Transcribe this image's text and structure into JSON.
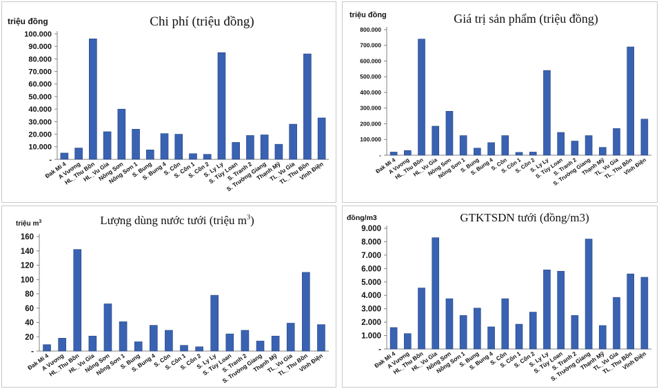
{
  "chart_data": [
    {
      "type": "bar",
      "title": "Chi phí (triệu đồng)",
      "ylabel": "triệu đồng",
      "ylim": [
        0,
        100000
      ],
      "y_ticks": [
        "-",
        "10.000",
        "20.000",
        "30.000",
        "40.000",
        "50.000",
        "60.000",
        "70.000",
        "80.000",
        "90.000",
        "100.000"
      ],
      "categories": [
        "Đak Mi 4",
        "A Vương",
        "HL_Thu Bồn",
        "HL_Vu Gia",
        "Nông Sơn",
        "Nông Sơn 1",
        "S. Bung",
        "S. Bung 4",
        "S. Côn",
        "S. Côn 1",
        "S. Côn 2",
        "S. Ly Ly",
        "S. Tùy Loan",
        "S. Tranh 2",
        "S. Trường Giang",
        "Thạnh Mỹ",
        "TL_Vu Gia",
        "TL_Thu Bồn",
        "Vĩnh Điện"
      ],
      "values": [
        5000,
        9000,
        96000,
        22000,
        40000,
        24000,
        7500,
        20500,
        20000,
        4500,
        4000,
        85000,
        13500,
        19000,
        19500,
        12000,
        28000,
        84000,
        33000
      ],
      "legend": "none",
      "grid": false
    },
    {
      "type": "bar",
      "title": "Giá trị sản phẩm (triệu đồng)",
      "ylabel": "triệu đồng",
      "ylim": [
        0,
        800000
      ],
      "y_ticks": [
        "-",
        "100.000",
        "200.000",
        "300.000",
        "400.000",
        "500.000",
        "600.000",
        "700.000",
        "800.000"
      ],
      "categories": [
        "Đak Mi 4",
        "A Vương",
        "HL_Thu Bồn",
        "HL_Vu Gia",
        "Nông Sơn",
        "Nông Sơn 1",
        "S. Bung",
        "S. Bung 4",
        "S. Côn",
        "S. Côn 1",
        "S. Côn 2",
        "S. Ly Ly",
        "S. Tùy Loan",
        "S. Tranh 2",
        "S. Trường Giang",
        "Thạnh Mỹ",
        "TL_Vu Gia",
        "TL_Thu Bồn",
        "Vĩnh Điện"
      ],
      "values": [
        20000,
        30000,
        740000,
        185000,
        280000,
        125000,
        45000,
        80000,
        125000,
        18000,
        20000,
        540000,
        145000,
        90000,
        125000,
        50000,
        170000,
        690000,
        230000
      ],
      "legend": "none",
      "grid": false
    },
    {
      "type": "bar",
      "title": "Lượng dùng nước tưới (triệu m",
      "title_sup": "3",
      "title_end": ")",
      "ylabel": "triệu m",
      "ylabel_sup": "3",
      "ylim": [
        0,
        160
      ],
      "y_ticks": [
        "-",
        "20",
        "40",
        "60",
        "80",
        "100",
        "120",
        "140",
        "160"
      ],
      "categories": [
        "Đak Mi 4",
        "A Vương",
        "HL_Thu Bồn",
        "HL_Vu Gia",
        "Nông Sơn",
        "Nông Sơn 1",
        "S. Bung",
        "S. Bung 4",
        "S. Côn",
        "S. Côn 1",
        "S. Côn 2",
        "S. Ly Ly",
        "S. Tùy Loan",
        "S. Tranh 2",
        "S. Trường Giang",
        "Thạnh Mỹ",
        "TL_Vu Gia",
        "TL_Thu Bồn",
        "Vĩnh Điện"
      ],
      "values": [
        9,
        18,
        142,
        21,
        66,
        41,
        13,
        36,
        29,
        8,
        6,
        78,
        24,
        29,
        14,
        21,
        39,
        110,
        37
      ],
      "legend": "none",
      "grid": false
    },
    {
      "type": "bar",
      "title": "GTKTSDN tưới (đồng/m3)",
      "ylabel": "đồng/m3",
      "ylim": [
        0,
        9000
      ],
      "y_ticks": [
        "-",
        "1.000",
        "2.000",
        "3.000",
        "4.000",
        "5.000",
        "6.000",
        "7.000",
        "8.000",
        "9.000"
      ],
      "categories": [
        "Đak Mi 4",
        "A Vương",
        "HL_Thu Bồn",
        "HL_Vu Gia",
        "Nông Sơn",
        "Nông Sơn 1",
        "S. Bung",
        "S. Bung 4",
        "S. Côn",
        "S. Côn 1",
        "S. Côn 2",
        "S. Ly Ly",
        "S. Tùy Loan",
        "S. Tranh 2",
        "S. Trường Giang",
        "Thạnh Mỹ",
        "TL_Vu Gia",
        "TL_Thu Bồn",
        "Vĩnh Điện"
      ],
      "values": [
        1600,
        1150,
        4550,
        8300,
        3750,
        2500,
        3050,
        1650,
        3750,
        1850,
        2750,
        5900,
        5800,
        2500,
        8200,
        1750,
        3850,
        5600,
        5350
      ],
      "legend": "none",
      "grid": false
    }
  ],
  "colors": {
    "bar": "#3a62b2",
    "bar_edge": "#24447f",
    "axis": "#808080"
  }
}
